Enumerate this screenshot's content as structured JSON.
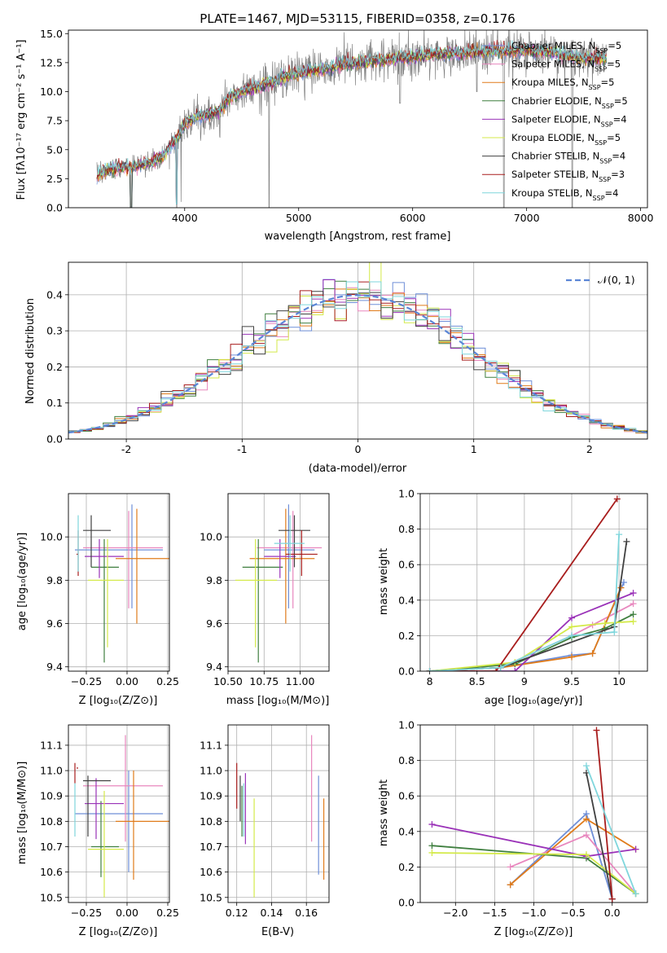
{
  "figure_title": "PLATE=1467, MJD=53115, FIBERID=0358, z=0.176",
  "legend_entries": [
    {
      "text": "Chabrier MILES, N",
      "sub": "SSP",
      "suffix": "=5",
      "color": "#6f8fd8"
    },
    {
      "text": "Salpeter MILES, N",
      "sub": "SSP",
      "suffix": "=5",
      "color": "#e887be"
    },
    {
      "text": "Kroupa MILES, N",
      "sub": "SSP",
      "suffix": "=5",
      "color": "#e07b1a"
    },
    {
      "text": "Chabrier ELODIE, N",
      "sub": "SSP",
      "suffix": "=5",
      "color": "#3f7f3f"
    },
    {
      "text": "Salpeter ELODIE, N",
      "sub": "SSP",
      "suffix": "=4",
      "color": "#9a32b8"
    },
    {
      "text": "Kroupa ELODIE, N",
      "sub": "SSP",
      "suffix": "=5",
      "color": "#d4ea4a"
    },
    {
      "text": "Chabrier STELIB, N",
      "sub": "SSP",
      "suffix": "=4",
      "color": "#404040"
    },
    {
      "text": "Salpeter STELIB, N",
      "sub": "SSP",
      "suffix": "=3",
      "color": "#a81d1d"
    },
    {
      "text": "Kroupa STELIB, N",
      "sub": "SSP",
      "suffix": "=4",
      "color": "#7fd6dc"
    }
  ],
  "chart_data": [
    {
      "id": "spectrum",
      "type": "line",
      "xlabel": "wavelength [Angstrom, rest frame]",
      "ylabel": "Flux [fλ10⁻¹⁷ erg cm⁻² s⁻¹ A⁻¹]",
      "xlim": [
        2980,
        8060
      ],
      "ylim": [
        0,
        15.3
      ],
      "xticks": [
        4000,
        5000,
        6000,
        7000,
        8000
      ],
      "yticks": [
        0.0,
        2.5,
        5.0,
        7.5,
        10.0,
        12.5,
        15.0
      ],
      "grid": false,
      "data_color": "#808080",
      "model_continuum": {
        "x": [
          3230,
          3300,
          3400,
          3500,
          3600,
          3700,
          3800,
          3900,
          3950,
          4000,
          4100,
          4200,
          4300,
          4400,
          4500,
          4600,
          4700,
          4800,
          4900,
          5000,
          5100,
          5200,
          5300,
          5400,
          5500,
          5600,
          5700,
          5800,
          5900,
          6000,
          6100,
          6200,
          6300,
          6400,
          6500,
          6600,
          6700,
          6800,
          6900,
          7000,
          7100,
          7200,
          7300,
          7400,
          7500,
          7600,
          7700
        ],
        "y": [
          2.6,
          3.2,
          3.4,
          3.5,
          3.6,
          3.9,
          4.3,
          5.6,
          6.2,
          7.2,
          7.8,
          8.0,
          8.3,
          9.5,
          10.0,
          10.3,
          10.6,
          10.9,
          11.4,
          11.6,
          11.8,
          11.9,
          12.1,
          12.4,
          12.5,
          12.6,
          12.7,
          12.8,
          12.9,
          13.0,
          13.1,
          13.2,
          13.3,
          13.3,
          13.4,
          13.4,
          13.5,
          13.5,
          13.5,
          13.6,
          13.5,
          13.4,
          13.2,
          13.0,
          12.9,
          12.8,
          12.9
        ]
      }
    },
    {
      "id": "residuals",
      "type": "histogram",
      "xlabel": "(data-model)/error",
      "ylabel": "Normed distribution",
      "xlim": [
        -2.5,
        2.5
      ],
      "ylim": [
        0,
        0.49
      ],
      "xticks": [
        -2,
        -1,
        0,
        1,
        2
      ],
      "yticks": [
        0.0,
        0.1,
        0.2,
        0.3,
        0.4
      ],
      "grid": true,
      "legend": "𝒩(0, 1)",
      "legend_position": "top-right",
      "bin_width": 0.1
    },
    {
      "id": "age-vs-Z",
      "type": "errorbar",
      "xlabel": "Z [log₁₀(Z/Z⊙)]",
      "ylabel": "age  [log₁₀(age/yr)]",
      "xlim": [
        -0.36,
        0.26
      ],
      "ylim": [
        9.38,
        10.2
      ],
      "xticks": [
        -0.25,
        0.0,
        0.25
      ],
      "xticklabels": [
        "−0.25",
        "0.00",
        "0.25"
      ],
      "yticks": [
        9.4,
        9.6,
        9.8,
        10.0
      ],
      "grid": true
    },
    {
      "id": "age-vs-mass",
      "type": "errorbar",
      "xlabel": "mass [log₁₀(M/M⊙)]",
      "xlim": [
        10.5,
        11.2
      ],
      "ylim": [
        9.38,
        10.2
      ],
      "xticks": [
        10.5,
        10.75,
        11.0
      ],
      "xticklabels": [
        "10.50",
        "10.75",
        "11.00"
      ],
      "yticks": [
        9.4,
        9.6,
        9.8,
        10.0
      ],
      "grid": true
    },
    {
      "id": "weight-vs-age",
      "type": "line",
      "xlabel": "age  [log₁₀(age/yr)]",
      "ylabel": "mass weight",
      "xlim": [
        7.9,
        10.3
      ],
      "ylim": [
        0,
        1.0
      ],
      "xticks": [
        8.0,
        8.5,
        9.0,
        9.5,
        10.0
      ],
      "yticks": [
        0.0,
        0.2,
        0.4,
        0.6,
        0.8,
        1.0
      ],
      "grid": true,
      "series": [
        {
          "color": "#6f8fd8",
          "x": [
            8.0,
            8.75,
            9.5,
            9.72,
            10.05
          ],
          "y": [
            0.0,
            0.02,
            0.09,
            0.1,
            0.5
          ]
        },
        {
          "color": "#e887be",
          "x": [
            8.0,
            8.75,
            9.5,
            9.72,
            10.15
          ],
          "y": [
            0.0,
            0.02,
            0.2,
            0.26,
            0.38
          ]
        },
        {
          "color": "#e07b1a",
          "x": [
            8.0,
            8.75,
            9.5,
            9.72,
            10.02
          ],
          "y": [
            0.0,
            0.02,
            0.08,
            0.1,
            0.47
          ]
        },
        {
          "color": "#3f7f3f",
          "x": [
            8.0,
            8.9,
            9.5,
            9.85,
            10.15
          ],
          "y": [
            0.0,
            0.04,
            0.19,
            0.24,
            0.32
          ]
        },
        {
          "color": "#9a32b8",
          "x": [
            8.0,
            8.9,
            9.5,
            10.15
          ],
          "y": [
            0.0,
            0.0,
            0.3,
            0.44
          ]
        },
        {
          "color": "#d4ea4a",
          "x": [
            8.0,
            8.9,
            9.5,
            9.85,
            10.15
          ],
          "y": [
            0.0,
            0.05,
            0.25,
            0.27,
            0.28
          ]
        },
        {
          "color": "#404040",
          "x": [
            8.0,
            8.75,
            9.95,
            10.08
          ],
          "y": [
            0.0,
            0.02,
            0.25,
            0.73
          ]
        },
        {
          "color": "#a81d1d",
          "x": [
            8.0,
            8.7,
            9.98
          ],
          "y": [
            0.0,
            0.0,
            0.97
          ]
        },
        {
          "color": "#7fd6dc",
          "x": [
            8.0,
            8.75,
            9.5,
            9.95,
            10.0
          ],
          "y": [
            0.0,
            0.02,
            0.2,
            0.22,
            0.77
          ]
        }
      ]
    },
    {
      "id": "mass-vs-Z",
      "type": "errorbar",
      "xlabel": "Z [log₁₀(Z/Z⊙)]",
      "ylabel": "mass [log₁₀(M/M⊙)]",
      "xlim": [
        -0.36,
        0.26
      ],
      "ylim": [
        10.48,
        11.18
      ],
      "xticks": [
        -0.25,
        0.0,
        0.25
      ],
      "xticklabels": [
        "−0.25",
        "0.00",
        "0.25"
      ],
      "yticks": [
        10.5,
        10.6,
        10.7,
        10.8,
        10.9,
        11.0,
        11.1
      ],
      "grid": true
    },
    {
      "id": "mass-vs-ebv",
      "type": "errorbar",
      "xlabel": "E(B-V)",
      "xlim": [
        0.115,
        0.173
      ],
      "ylim": [
        10.48,
        11.18
      ],
      "xticks": [
        0.12,
        0.14,
        0.16
      ],
      "yticks": [
        10.5,
        10.6,
        10.7,
        10.8,
        10.9,
        11.0,
        11.1
      ],
      "grid": true
    },
    {
      "id": "weight-vs-Z",
      "type": "line",
      "xlabel": "Z [log₁₀(Z/Z⊙)]",
      "ylabel": "mass weight",
      "xlim": [
        -2.45,
        0.45
      ],
      "ylim": [
        0,
        1.0
      ],
      "xticks": [
        -2.0,
        -1.5,
        -1.0,
        -0.5,
        0.0
      ],
      "xticklabels": [
        "−2.0",
        "−1.5",
        "−1.0",
        "−0.5",
        "0.0"
      ],
      "yticks": [
        0.0,
        0.2,
        0.4,
        0.6,
        0.8,
        1.0
      ],
      "grid": true,
      "series": [
        {
          "color": "#6f8fd8",
          "x": [
            -1.3,
            -0.33,
            0.0
          ],
          "y": [
            0.1,
            0.5,
            0.02
          ]
        },
        {
          "color": "#e887be",
          "x": [
            -1.3,
            -0.33,
            0.3
          ],
          "y": [
            0.2,
            0.38,
            0.05
          ]
        },
        {
          "color": "#e07b1a",
          "x": [
            -1.3,
            -0.33,
            0.3
          ],
          "y": [
            0.1,
            0.47,
            0.3
          ]
        },
        {
          "color": "#3f7f3f",
          "x": [
            -2.3,
            -0.33,
            0.3
          ],
          "y": [
            0.32,
            0.25,
            0.05
          ]
        },
        {
          "color": "#9a32b8",
          "x": [
            -2.3,
            -0.33,
            0.3
          ],
          "y": [
            0.44,
            0.26,
            0.3
          ]
        },
        {
          "color": "#d4ea4a",
          "x": [
            -2.3,
            -0.33,
            0.3
          ],
          "y": [
            0.28,
            0.27,
            0.05
          ]
        },
        {
          "color": "#404040",
          "x": [
            -0.33,
            0.0
          ],
          "y": [
            0.73,
            0.02
          ]
        },
        {
          "color": "#a81d1d",
          "x": [
            -0.2,
            0.0
          ],
          "y": [
            0.97,
            0.02
          ]
        },
        {
          "color": "#7fd6dc",
          "x": [
            -0.33,
            0.3
          ],
          "y": [
            0.77,
            0.05
          ]
        }
      ]
    }
  ]
}
